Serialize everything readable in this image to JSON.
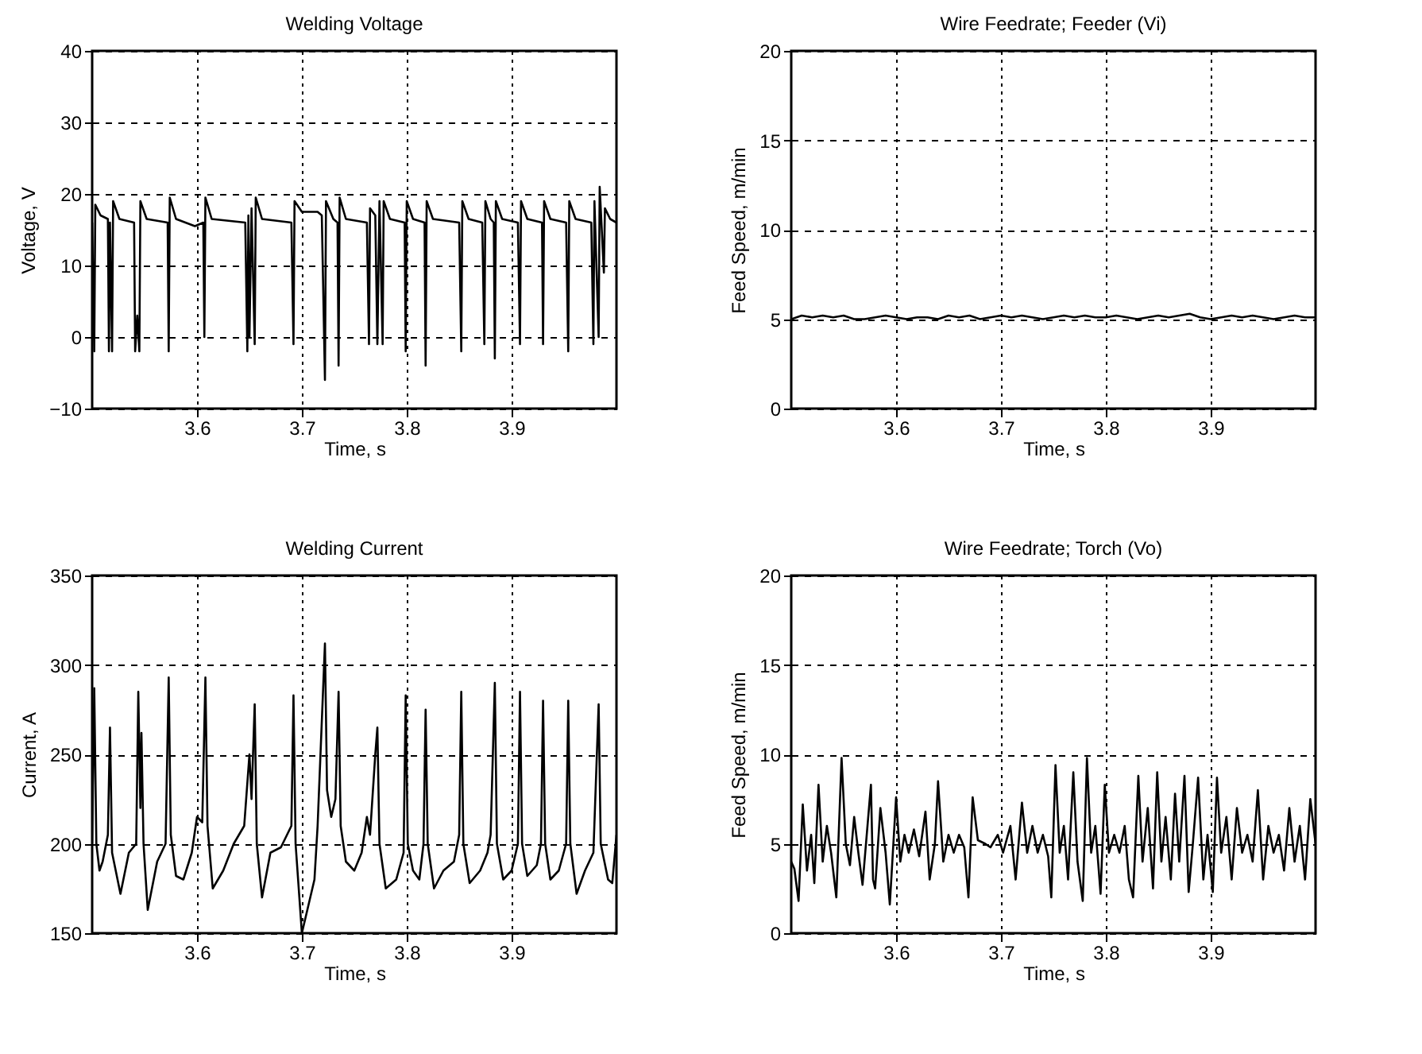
{
  "chart_data": [
    {
      "type": "line",
      "title": "Welding Voltage",
      "xlabel": "Time, s",
      "ylabel": "Voltage, V",
      "color": "#000000",
      "grid": true,
      "xlim": [
        3.5,
        4.0
      ],
      "xticks": [
        3.6,
        3.7,
        3.8,
        3.9
      ],
      "ylim": [
        -10,
        40
      ],
      "yticks": [
        -10,
        0,
        10,
        20,
        30,
        40
      ],
      "x": [
        3.5,
        3.502,
        3.503,
        3.508,
        3.515,
        3.516,
        3.517,
        3.519,
        3.52,
        3.526,
        3.54,
        3.541,
        3.543,
        3.545,
        3.546,
        3.552,
        3.572,
        3.573,
        3.574,
        3.58,
        3.598,
        3.606,
        3.607,
        3.608,
        3.614,
        3.646,
        3.648,
        3.649,
        3.65,
        3.652,
        3.655,
        3.656,
        3.662,
        3.69,
        3.692,
        3.693,
        3.7,
        3.715,
        3.719,
        3.722,
        3.723,
        3.73,
        3.734,
        3.735,
        3.736,
        3.742,
        3.762,
        3.764,
        3.765,
        3.77,
        3.772,
        3.774,
        3.777,
        3.778,
        3.784,
        3.798,
        3.799,
        3.8,
        3.806,
        3.817,
        3.818,
        3.819,
        3.825,
        3.85,
        3.852,
        3.853,
        3.859,
        3.872,
        3.874,
        3.875,
        3.88,
        3.883,
        3.884,
        3.885,
        3.891,
        3.906,
        3.908,
        3.909,
        3.915,
        3.929,
        3.93,
        3.931,
        3.937,
        3.952,
        3.954,
        3.955,
        3.961,
        3.976,
        3.978,
        3.979,
        3.983,
        3.984,
        3.988,
        3.989,
        3.994,
        4.0
      ],
      "values": [
        16,
        -2,
        18.5,
        17,
        16.5,
        -2,
        16,
        -2,
        19,
        16.5,
        16,
        -2,
        3,
        -2,
        19,
        16.5,
        16,
        -2,
        19.5,
        16.5,
        15.5,
        16,
        0,
        19.5,
        16.5,
        16,
        -2,
        17,
        0,
        18,
        -1,
        19.5,
        16.5,
        16,
        -1,
        19,
        17.5,
        17.5,
        17,
        -6,
        19,
        16.5,
        16,
        -4,
        19.5,
        16.5,
        16,
        -1,
        18,
        17,
        -1,
        19,
        -1,
        19,
        16.5,
        16,
        -2,
        19,
        16.5,
        16,
        -4,
        19,
        16.5,
        16,
        -2,
        19,
        16.5,
        16,
        -1,
        19,
        16.5,
        16,
        -3,
        19,
        16.5,
        16,
        -1,
        19,
        16.5,
        16,
        -1,
        19,
        16.5,
        16,
        -2,
        19,
        16.5,
        16,
        -1,
        19,
        0,
        21,
        9,
        18,
        16.5,
        16
      ]
    },
    {
      "type": "line",
      "title": "Wire Feedrate; Feeder (Vi)",
      "xlabel": "Time, s",
      "ylabel": "Feed Speed, m/min",
      "color": "#000000",
      "grid": true,
      "xlim": [
        3.5,
        4.0
      ],
      "xticks": [
        3.6,
        3.7,
        3.8,
        3.9
      ],
      "ylim": [
        0,
        20
      ],
      "yticks": [
        0,
        5,
        10,
        15,
        20
      ],
      "x": [
        3.5,
        3.51,
        3.52,
        3.53,
        3.54,
        3.55,
        3.56,
        3.57,
        3.58,
        3.59,
        3.6,
        3.61,
        3.62,
        3.63,
        3.64,
        3.65,
        3.66,
        3.67,
        3.68,
        3.69,
        3.7,
        3.71,
        3.72,
        3.73,
        3.74,
        3.75,
        3.76,
        3.77,
        3.78,
        3.79,
        3.8,
        3.81,
        3.82,
        3.83,
        3.84,
        3.85,
        3.86,
        3.87,
        3.88,
        3.89,
        3.9,
        3.91,
        3.92,
        3.93,
        3.94,
        3.95,
        3.96,
        3.97,
        3.98,
        3.99,
        4.0
      ],
      "values": [
        5.0,
        5.2,
        5.1,
        5.2,
        5.1,
        5.2,
        5.0,
        5.0,
        5.1,
        5.2,
        5.1,
        5.0,
        5.1,
        5.1,
        5.0,
        5.2,
        5.1,
        5.2,
        5.0,
        5.1,
        5.2,
        5.1,
        5.2,
        5.1,
        5.0,
        5.1,
        5.2,
        5.1,
        5.2,
        5.1,
        5.1,
        5.2,
        5.1,
        5.0,
        5.1,
        5.2,
        5.1,
        5.2,
        5.3,
        5.1,
        5.0,
        5.1,
        5.2,
        5.1,
        5.2,
        5.1,
        5.0,
        5.1,
        5.2,
        5.1,
        5.1
      ]
    },
    {
      "type": "line",
      "title": "Welding Current",
      "xlabel": "Time, s",
      "ylabel": "Current, A",
      "color": "#000000",
      "grid": true,
      "xlim": [
        3.5,
        4.0
      ],
      "xticks": [
        3.6,
        3.7,
        3.8,
        3.9
      ],
      "ylim": [
        150,
        350
      ],
      "yticks": [
        150,
        200,
        250,
        300,
        350
      ],
      "x": [
        3.5,
        3.502,
        3.504,
        3.507,
        3.51,
        3.515,
        3.517,
        3.519,
        3.527,
        3.535,
        3.542,
        3.544,
        3.546,
        3.547,
        3.549,
        3.553,
        3.562,
        3.57,
        3.573,
        3.575,
        3.58,
        3.587,
        3.595,
        3.6,
        3.605,
        3.608,
        3.61,
        3.615,
        3.625,
        3.635,
        3.645,
        3.65,
        3.652,
        3.655,
        3.657,
        3.662,
        3.67,
        3.68,
        3.69,
        3.692,
        3.694,
        3.7,
        3.712,
        3.715,
        3.722,
        3.724,
        3.728,
        3.732,
        3.735,
        3.737,
        3.742,
        3.75,
        3.757,
        3.762,
        3.765,
        3.77,
        3.772,
        3.774,
        3.78,
        3.79,
        3.797,
        3.799,
        3.801,
        3.806,
        3.812,
        3.816,
        3.818,
        3.82,
        3.826,
        3.835,
        3.845,
        3.85,
        3.852,
        3.854,
        3.86,
        3.87,
        3.877,
        3.88,
        3.884,
        3.886,
        3.892,
        3.9,
        3.906,
        3.908,
        3.91,
        3.915,
        3.924,
        3.928,
        3.93,
        3.932,
        3.937,
        3.945,
        3.952,
        3.954,
        3.956,
        3.962,
        3.97,
        3.978,
        3.983,
        3.985,
        3.992,
        3.996,
        4.0
      ],
      "values": [
        200,
        287,
        200,
        185,
        190,
        205,
        265,
        195,
        172,
        195,
        200,
        285,
        220,
        262,
        200,
        163,
        190,
        200,
        293,
        205,
        182,
        180,
        195,
        215,
        212,
        293,
        210,
        175,
        185,
        200,
        210,
        250,
        225,
        278,
        200,
        170,
        195,
        198,
        210,
        283,
        200,
        150,
        180,
        210,
        312,
        230,
        215,
        225,
        285,
        210,
        190,
        185,
        195,
        215,
        205,
        250,
        265,
        200,
        175,
        180,
        195,
        283,
        200,
        185,
        180,
        200,
        275,
        200,
        175,
        185,
        190,
        205,
        285,
        200,
        178,
        185,
        195,
        205,
        290,
        200,
        180,
        185,
        200,
        285,
        200,
        182,
        188,
        200,
        280,
        200,
        180,
        185,
        200,
        280,
        200,
        172,
        185,
        195,
        278,
        200,
        180,
        178,
        205
      ]
    },
    {
      "type": "line",
      "title": "Wire Feedrate; Torch (Vo)",
      "xlabel": "Time, s",
      "ylabel": "Feed Speed, m/min",
      "color": "#000000",
      "grid": true,
      "xlim": [
        3.5,
        4.0
      ],
      "xticks": [
        3.6,
        3.7,
        3.8,
        3.9
      ],
      "ylim": [
        0,
        20
      ],
      "yticks": [
        0,
        5,
        10,
        15,
        20
      ],
      "x": [
        3.5,
        3.503,
        3.507,
        3.511,
        3.515,
        3.519,
        3.522,
        3.526,
        3.53,
        3.534,
        3.538,
        3.543,
        3.548,
        3.552,
        3.556,
        3.56,
        3.564,
        3.568,
        3.576,
        3.578,
        3.58,
        3.585,
        3.59,
        3.594,
        3.6,
        3.604,
        3.608,
        3.612,
        3.617,
        3.622,
        3.628,
        3.632,
        3.637,
        3.64,
        3.645,
        3.65,
        3.655,
        3.66,
        3.665,
        3.669,
        3.673,
        3.678,
        3.685,
        3.69,
        3.697,
        3.702,
        3.709,
        3.714,
        3.72,
        3.725,
        3.73,
        3.735,
        3.74,
        3.745,
        3.748,
        3.752,
        3.756,
        3.76,
        3.764,
        3.769,
        3.773,
        3.778,
        3.782,
        3.786,
        3.79,
        3.795,
        3.799,
        3.803,
        3.808,
        3.813,
        3.818,
        3.822,
        3.826,
        3.831,
        3.835,
        3.84,
        3.845,
        3.849,
        3.853,
        3.857,
        3.862,
        3.866,
        3.87,
        3.875,
        3.879,
        3.883,
        3.888,
        3.893,
        3.897,
        3.902,
        3.906,
        3.91,
        3.915,
        3.92,
        3.925,
        3.93,
        3.935,
        3.94,
        3.945,
        3.95,
        3.955,
        3.96,
        3.965,
        3.97,
        3.975,
        3.98,
        3.985,
        3.99,
        3.995,
        4.0
      ],
      "values": [
        4,
        3.6,
        1.8,
        7.2,
        3.5,
        5.5,
        2.8,
        8.3,
        4,
        6,
        4.5,
        2,
        9.8,
        5,
        3.8,
        6.5,
        4.5,
        2.7,
        8.3,
        3,
        2.5,
        7,
        4.5,
        1.6,
        7.6,
        4,
        5.5,
        4.5,
        5.8,
        4.3,
        6.8,
        3,
        5,
        8.5,
        4,
        5.5,
        4.5,
        5.5,
        4.8,
        2,
        7.6,
        5.2,
        5,
        4.8,
        5.5,
        4.5,
        6,
        3,
        7.3,
        4.5,
        6,
        4.5,
        5.5,
        4.3,
        2,
        9.4,
        4.5,
        6,
        3,
        9,
        4,
        1.8,
        9.8,
        4.5,
        6,
        2.2,
        8.3,
        4.5,
        5.5,
        4.5,
        6,
        3,
        2,
        8.8,
        4,
        7,
        2.5,
        9,
        4,
        6.5,
        3,
        7.8,
        4,
        8.8,
        2.3,
        5,
        8.7,
        3,
        5.5,
        2.3,
        8.7,
        4.5,
        6.5,
        3,
        7,
        4.5,
        5.5,
        4,
        8,
        3,
        6,
        4.5,
        5.5,
        3.5,
        7,
        4,
        6,
        3,
        7.5,
        5
      ]
    }
  ]
}
